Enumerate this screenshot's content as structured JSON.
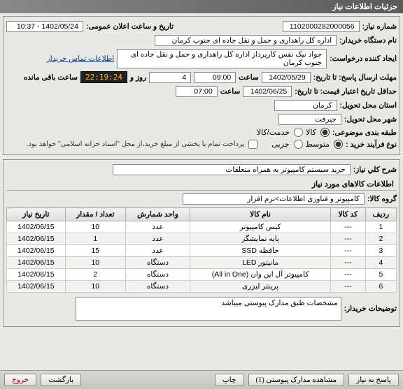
{
  "window": {
    "title": "جزئیات اطلاعات نیاز"
  },
  "fields": {
    "need_no_label": "شماره نیاز:",
    "need_no": "1102000282000056",
    "announce_label": "تاریخ و ساعت اعلان عمومی:",
    "announce": "1402/05/24 - 10:37",
    "buyer_label": "نام دستگاه خریدار:",
    "buyer": "اداره کل راهداری و حمل و نقل جاده ای جنوب کرمان",
    "creator_label": "ایجاد کننده درخواست:",
    "creator": "جواد  نیک نفس کارپرداز اداره کل راهداری و حمل و نقل جاده ای جنوب کرمان",
    "contact_link": "اطلاعات تماس خریدار",
    "deadline_label": "مهلت ارسال پاسخ: تا تاریخ:",
    "deadline_date": "1402/05/29",
    "time_label": "ساعت",
    "deadline_time": "09:00",
    "days_label": "روز و",
    "days": "4",
    "remain_label": "ساعت باقی مانده",
    "remain_time": "22:19:24",
    "validity_label": "حداقل تاریخ اعتبار قیمت: تا تاریخ:",
    "validity_date": "1402/06/25",
    "validity_time": "07:00",
    "province_label": "استان محل تحویل:",
    "province": "کرمان",
    "city_label": "شهر محل تحویل:",
    "city": "جیرفت",
    "category_label": "طبقه بندی موضوعی:",
    "cat_kala": "کالا",
    "cat_service": "خدمت/کالا",
    "process_label": "نوع فرآیند خرید :",
    "proc_low": "متوسط",
    "proc_part": "جزیی",
    "pay_note": "پرداخت تمام یا بخشی از مبلغ خرید،از محل \"اسناد خزانه اسلامی\" خواهد بود.",
    "desc_label": "شرح کلي نياز:",
    "desc": "خرید سیستم کامپیوتر به همراه متعلقات",
    "goods_section": "اطلاعات کالاهای مورد نیاز",
    "group_label": "گروه کالا:",
    "group": "کامپیوتر و فناوری اطلاعات>نرم افزار",
    "buyer_notes_label": "توضیحات خریدار:",
    "buyer_notes": "مشخصات طبق مدارک پیوستی میباشد"
  },
  "table": {
    "headers": [
      "ردیف",
      "کد کالا",
      "نام کالا",
      "واحد شمارش",
      "تعداد / مقدار",
      "تاریخ نیاز"
    ],
    "rows": [
      [
        "1",
        "---",
        "کیس کامپیوتر",
        "عدد",
        "10",
        "1402/06/15"
      ],
      [
        "2",
        "---",
        "پایه نمایشگر",
        "عدد",
        "1",
        "1402/06/15"
      ],
      [
        "3",
        "---",
        "حافظه SSD",
        "عدد",
        "15",
        "1402/06/15"
      ],
      [
        "4",
        "---",
        "مانیتور LED",
        "دستگاه",
        "10",
        "1402/06/15"
      ],
      [
        "5",
        "---",
        "کامپیوتر آل این وان (All in One)",
        "دستگاه",
        "2",
        "1402/06/15"
      ],
      [
        "6",
        "---",
        "پرینتر لیزری",
        "دستگاه",
        "10",
        "1402/06/15"
      ]
    ]
  },
  "footer": {
    "reply": "پاسخ به نیاز",
    "attach": "مشاهده مدارک پیوستی (1)",
    "print": "چاپ",
    "back": "بازگشت",
    "exit": "خروج"
  }
}
